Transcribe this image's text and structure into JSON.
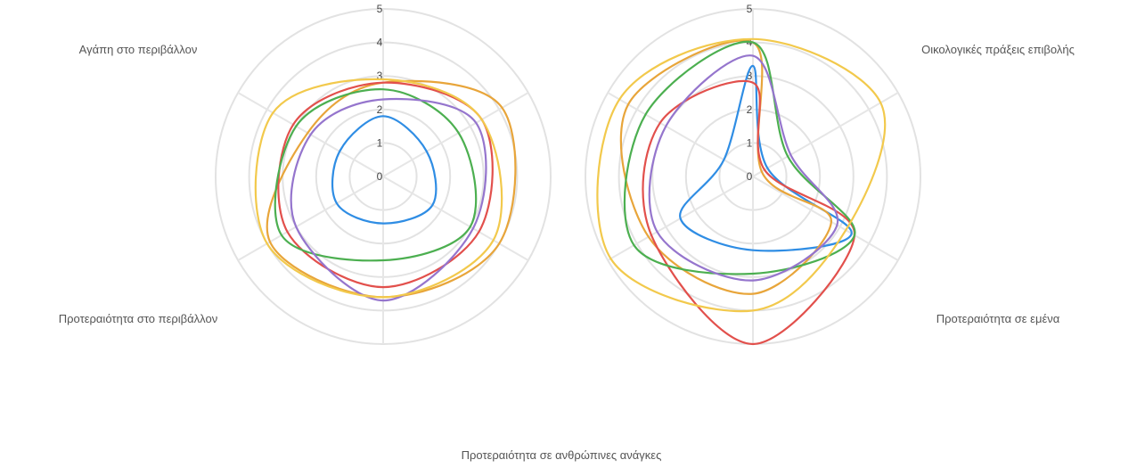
{
  "chart_data": [
    {
      "type": "radar",
      "scale": [
        0,
        5
      ],
      "ticks": [
        "0",
        "1",
        "2",
        "3",
        "4",
        "5"
      ],
      "grid": true,
      "axis_labels": [
        "Αγάπη στο περιβάλλον",
        "Προτεραιότητα στο περιβάλλον"
      ],
      "series": [
        {
          "color": "#2f8de4",
          "values": [
            1.8,
            1.5,
            1.7,
            1.4,
            1.6,
            1.5
          ]
        },
        {
          "color": "#e8a53a",
          "values": [
            2.8,
            4.1,
            4.0,
            3.6,
            3.9,
            2.6
          ]
        },
        {
          "color": "#e2504c",
          "values": [
            2.8,
            3.4,
            3.3,
            3.3,
            3.3,
            3.1
          ]
        },
        {
          "color": "#4caf50",
          "values": [
            2.6,
            2.6,
            3.0,
            2.5,
            3.5,
            3.0
          ]
        },
        {
          "color": "#9575cd",
          "values": [
            2.3,
            3.2,
            3.1,
            3.7,
            3.0,
            2.5
          ]
        },
        {
          "color": "#f2c94c",
          "values": [
            2.9,
            3.4,
            3.8,
            3.6,
            4.0,
            3.8
          ]
        }
      ]
    },
    {
      "type": "radar",
      "scale": [
        0,
        5
      ],
      "ticks": [
        "0",
        "1",
        "2",
        "3",
        "4",
        "5"
      ],
      "grid": true,
      "axis_labels": [
        "Οικολογικές πράξεις επιβολής",
        "Προτεραιότητα σε εμένα"
      ],
      "series": [
        {
          "color": "#2f8de4",
          "values": [
            3.3,
            0.5,
            3.4,
            2.2,
            2.5,
            1.0
          ]
        },
        {
          "color": "#e8a53a",
          "values": [
            4.0,
            0.3,
            2.7,
            3.5,
            3.6,
            4.3
          ]
        },
        {
          "color": "#e2504c",
          "values": [
            2.8,
            0.4,
            3.5,
            5.0,
            3.5,
            3.2
          ]
        },
        {
          "color": "#4caf50",
          "values": [
            4.0,
            1.2,
            3.5,
            2.9,
            4.1,
            3.7
          ]
        },
        {
          "color": "#9575cd",
          "values": [
            3.6,
            1.3,
            2.9,
            3.1,
            3.3,
            3.0
          ]
        },
        {
          "color": "#f2c94c",
          "values": [
            4.1,
            4.4,
            3.2,
            4.0,
            4.9,
            4.6
          ]
        }
      ]
    }
  ],
  "bottom_label": "Προτεραιότητα σε ανθρώπινες ανάγκες"
}
